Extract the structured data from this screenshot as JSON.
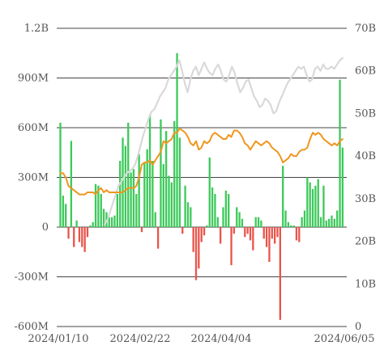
{
  "chart_data": {
    "type": "bar",
    "x_tick_labels": [
      "2024/01/10",
      "2024/02/22",
      "2024/04/04",
      "2024/06/05"
    ],
    "left_axis": {
      "ticks": [
        -600,
        -300,
        0,
        300,
        600,
        900,
        1200
      ],
      "tick_labels": [
        "-600M",
        "-300M",
        "0",
        "300M",
        "600M",
        "900M",
        "1.2B"
      ],
      "ylim": [
        -600,
        1200
      ],
      "unit": "M"
    },
    "right_axis": {
      "ticks": [
        0,
        10,
        20,
        30,
        40,
        50,
        60,
        70
      ],
      "tick_labels": [
        "0",
        "10B",
        "20B",
        "30B",
        "40B",
        "50B",
        "60B",
        "70B"
      ],
      "ylim": [
        0,
        70
      ],
      "unit": "B"
    },
    "grid": true,
    "colors": {
      "positive_bar": "#3cc95a",
      "negative_bar": "#e8544b",
      "orange_line": "#f0961e",
      "gray_line": "#d9d9d9",
      "grid": "#444444"
    },
    "bars": [
      630,
      190,
      140,
      -70,
      520,
      -120,
      40,
      -90,
      -120,
      -150,
      -60,
      10,
      30,
      260,
      250,
      200,
      110,
      90,
      60,
      60,
      70,
      200,
      400,
      540,
      490,
      630,
      330,
      350,
      200,
      440,
      -30,
      390,
      470,
      680,
      400,
      90,
      -130,
      650,
      380,
      580,
      310,
      270,
      640,
      1050,
      540,
      -40,
      250,
      150,
      120,
      -150,
      -320,
      -250,
      -90,
      -50,
      10,
      420,
      240,
      200,
      60,
      -100,
      120,
      220,
      200,
      -230,
      -40,
      120,
      90,
      50,
      -60,
      -40,
      -80,
      -140,
      60,
      60,
      40,
      -70,
      -120,
      -210,
      -70,
      -100,
      -60,
      -560,
      370,
      100,
      30,
      10,
      10,
      -80,
      -90,
      60,
      100,
      300,
      270,
      230,
      250,
      290,
      60,
      250,
      40,
      50,
      70,
      50,
      100,
      890,
      480
    ],
    "series": [
      {
        "values": [
          36,
          36,
          35,
          33,
          32.5,
          32,
          31.5,
          31,
          31,
          31,
          31.5,
          31.5,
          31.5,
          31,
          32,
          32.5,
          31.5,
          32,
          31.5,
          31.5,
          31.5,
          31.5,
          31.5,
          31.5,
          32,
          32.5,
          32.5,
          32.5,
          33,
          35,
          38,
          38.5,
          38.5,
          39,
          38,
          39,
          40,
          41,
          43.5,
          43,
          43.5,
          44,
          45.5,
          45.5,
          46.5,
          46,
          45.5,
          44.5,
          43,
          42.5,
          43.5,
          41.5,
          42,
          43.5,
          43,
          43.5,
          45,
          45.5,
          45,
          44.5,
          44,
          44,
          45,
          44.5,
          46,
          46,
          45.5,
          44.5,
          43,
          42.5,
          41.5,
          42.5,
          43.5,
          43,
          42.5,
          43,
          43.5,
          43,
          42,
          41.5,
          41,
          40,
          38.5,
          39,
          39.5,
          40.5,
          40,
          40,
          41,
          41.5,
          41.5,
          42,
          44,
          45.5,
          45,
          45.5,
          45,
          44,
          43.5,
          43,
          42.5,
          43,
          42.5,
          43.5,
          44
        ]
      },
      {
        "values": [
          null,
          null,
          null,
          null,
          null,
          null,
          null,
          null,
          null,
          null,
          null,
          null,
          null,
          null,
          null,
          null,
          24,
          25,
          27,
          29,
          31,
          33,
          34,
          35,
          36,
          36.5,
          37,
          38,
          40,
          42.5,
          45,
          47,
          49,
          50.5,
          51,
          52.5,
          54,
          55,
          56,
          58,
          59,
          60,
          61,
          62.5,
          60,
          57,
          55,
          58,
          60,
          61,
          59,
          60.5,
          62,
          60.5,
          59.5,
          59,
          60.5,
          61.5,
          60,
          58,
          57.5,
          59,
          61,
          59.5,
          57,
          55,
          56,
          57.5,
          58,
          56,
          54,
          53,
          51.5,
          52,
          53.5,
          53,
          52,
          50,
          50.5,
          52.5,
          54,
          55.5,
          57,
          58,
          59,
          60,
          61,
          60.5,
          61,
          59,
          57.5,
          58,
          60.5,
          61,
          60,
          61.5,
          60.5,
          60.5,
          61,
          60.5,
          61.5,
          62.5,
          63
        ]
      }
    ]
  }
}
